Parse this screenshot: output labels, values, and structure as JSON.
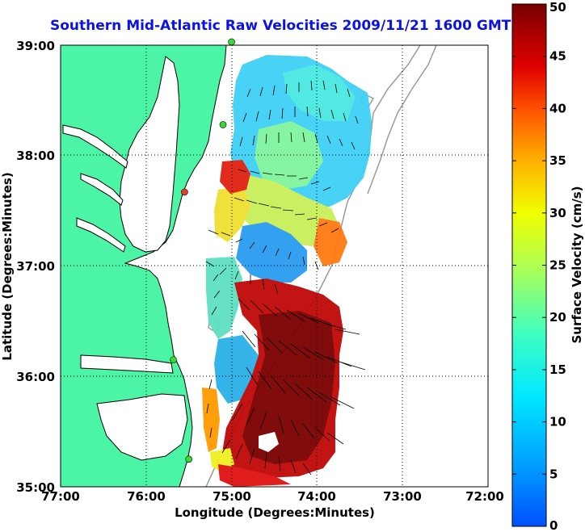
{
  "title": "Southern Mid-Atlantic Raw Velocities 2009/11/21 1600 GMT",
  "xlabel": "Longitude (Degrees:Minutes)",
  "ylabel": "Latitude (Degrees:Minutes)",
  "x_ticks": [
    "77:00",
    "76:00",
    "75:00",
    "74:00",
    "73:00",
    "72:00"
  ],
  "y_ticks": [
    "39:00",
    "38:00",
    "37:00",
    "36:00",
    "35:00"
  ],
  "colorbar": {
    "label": "Surface Velocity (cm/s)",
    "ticks": [
      "0",
      "5",
      "10",
      "15",
      "20",
      "25",
      "30",
      "35",
      "40",
      "45",
      "50"
    ],
    "range": [
      0,
      50
    ],
    "units": "cm/s"
  },
  "map": {
    "lon_range": [
      -77,
      -72
    ],
    "lat_range": [
      35,
      39
    ],
    "grid": true,
    "land_color": "#4cf5a5",
    "coast_color": "#000000",
    "bathymetry_color": "#9a9a9a",
    "station_markers": [
      {
        "lon": -75.0,
        "lat": 39.03,
        "color": "#33dd33"
      },
      {
        "lon": -75.1,
        "lat": 38.28,
        "color": "#33dd33"
      },
      {
        "lon": -75.55,
        "lat": 37.67,
        "color": "#e63c28"
      },
      {
        "lon": -75.68,
        "lat": 36.15,
        "color": "#33dd33"
      },
      {
        "lon": -75.5,
        "lat": 35.25,
        "color": "#33dd33"
      }
    ]
  }
}
